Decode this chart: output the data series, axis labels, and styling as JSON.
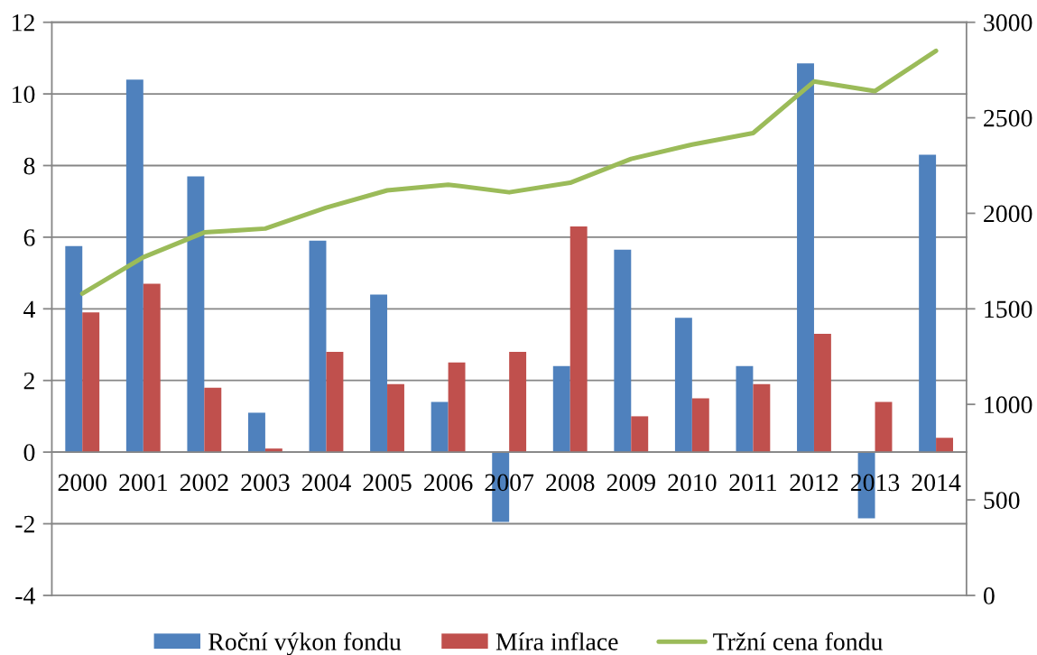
{
  "chart_data": {
    "type": "bar",
    "categories": [
      "2000",
      "2001",
      "2002",
      "2003",
      "2004",
      "2005",
      "2006",
      "2007",
      "2008",
      "2009",
      "2010",
      "2011",
      "2012",
      "2013",
      "2014"
    ],
    "series": [
      {
        "name": "Roční výkon fondu",
        "color": "#4f81bd",
        "values": [
          5.75,
          10.4,
          7.7,
          1.1,
          5.9,
          4.4,
          1.4,
          -1.95,
          2.4,
          5.65,
          3.75,
          2.4,
          10.85,
          -1.85,
          8.3
        ]
      },
      {
        "name": "Míra inflace",
        "color": "#c0504d",
        "values": [
          3.9,
          4.7,
          1.8,
          0.1,
          2.8,
          1.9,
          2.5,
          2.8,
          6.3,
          1.0,
          1.5,
          1.9,
          3.3,
          1.4,
          0.4
        ]
      },
      {
        "name": "Tržní cena fondu",
        "type": "line",
        "axis": "y2",
        "color": "#9bbb59",
        "values": [
          1580,
          1770,
          1900,
          1920,
          2030,
          2120,
          2150,
          2110,
          2160,
          2285,
          2360,
          2420,
          2690,
          2640,
          2850
        ]
      }
    ],
    "ylim": [
      -4,
      12
    ],
    "yticks": [
      -4,
      -2,
      0,
      2,
      4,
      6,
      8,
      10,
      12
    ],
    "y2lim": [
      0,
      3000
    ],
    "y2ticks": [
      0,
      500,
      1000,
      1500,
      2000,
      2500,
      3000
    ],
    "grid": "y",
    "legend": "bottom"
  }
}
